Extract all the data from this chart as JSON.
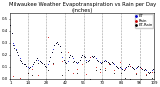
{
  "title": "Milwaukee Weather Evapotranspiration vs Rain per Day (Inches)",
  "title_fontsize": 3.8,
  "background_color": "#ffffff",
  "ylim": [
    0.0,
    0.55
  ],
  "xlim": [
    1,
    109
  ],
  "tick_fontsize": 2.8,
  "series": [
    {
      "label": "ET",
      "color": "#0000cc",
      "marker": ".",
      "markersize": 1.2,
      "x": [
        1,
        2,
        3,
        4,
        5,
        6,
        7,
        8,
        9,
        10,
        11,
        12,
        13,
        14,
        15,
        16,
        17,
        18,
        19,
        20,
        21,
        22,
        23,
        24,
        25,
        26,
        27,
        28,
        29,
        30,
        31,
        32,
        33,
        34,
        35,
        36,
        37,
        38,
        39,
        40,
        41,
        42,
        43,
        44,
        45,
        46,
        47,
        48,
        49,
        50,
        51,
        52,
        53,
        54,
        55,
        56,
        57,
        58,
        59,
        60,
        61,
        62,
        63,
        64,
        65,
        66,
        67,
        68,
        69,
        70,
        71,
        72,
        73,
        74,
        75,
        76,
        77,
        78,
        79,
        80,
        81,
        82,
        83,
        84,
        85,
        86,
        87,
        88,
        89,
        90,
        91,
        92,
        93,
        94,
        95,
        96,
        97,
        98,
        99,
        100,
        101,
        102,
        103,
        104,
        105,
        106,
        107,
        108,
        109
      ],
      "y": [
        0.45,
        0.38,
        0.3,
        0.28,
        0.25,
        0.22,
        0.2,
        0.17,
        0.15,
        0.13,
        0.12,
        0.12,
        0.11,
        0.1,
        0.09,
        0.1,
        0.11,
        0.12,
        0.14,
        0.16,
        0.17,
        0.16,
        0.15,
        0.14,
        0.13,
        0.12,
        0.11,
        0.1,
        0.12,
        0.15,
        0.18,
        0.22,
        0.25,
        0.28,
        0.3,
        0.31,
        0.29,
        0.27,
        0.22,
        0.18,
        0.16,
        0.14,
        0.13,
        0.15,
        0.18,
        0.2,
        0.19,
        0.17,
        0.15,
        0.14,
        0.13,
        0.14,
        0.16,
        0.18,
        0.2,
        0.19,
        0.18,
        0.16,
        0.15,
        0.16,
        0.18,
        0.19,
        0.18,
        0.19,
        0.17,
        0.16,
        0.15,
        0.14,
        0.13,
        0.14,
        0.15,
        0.16,
        0.15,
        0.14,
        0.13,
        0.12,
        0.14,
        0.13,
        0.12,
        0.11,
        0.1,
        0.09,
        0.1,
        0.09,
        0.08,
        0.07,
        0.09,
        0.1,
        0.11,
        0.12,
        0.11,
        0.1,
        0.09,
        0.08,
        0.09,
        0.1,
        0.11,
        0.1,
        0.09,
        0.08,
        0.07,
        0.08,
        0.07,
        0.06,
        0.05,
        0.06,
        0.07,
        0.08,
        0.06
      ]
    },
    {
      "label": "Rain",
      "color": "#cc0000",
      "marker": ".",
      "markersize": 1.2,
      "x": [
        3,
        8,
        14,
        17,
        22,
        29,
        33,
        40,
        44,
        48,
        51,
        55,
        58,
        61,
        65,
        68,
        72,
        75,
        79,
        83,
        87,
        91,
        95,
        99,
        103,
        107
      ],
      "y": [
        0.02,
        0.01,
        0.05,
        0.08,
        0.03,
        0.35,
        0.12,
        0.15,
        0.22,
        0.05,
        0.08,
        0.12,
        0.04,
        0.18,
        0.1,
        0.06,
        0.09,
        0.12,
        0.07,
        0.14,
        0.08,
        0.11,
        0.05,
        0.09,
        0.04,
        0.06
      ]
    },
    {
      "label": "ET-Rain",
      "color": "#000000",
      "marker": ".",
      "markersize": 1.2,
      "x": [
        1,
        2,
        3,
        4,
        5,
        6,
        7,
        8,
        9,
        10,
        11,
        12,
        13,
        14,
        15,
        16,
        17,
        18,
        19,
        20,
        21,
        22,
        23,
        24,
        25,
        26,
        27,
        28,
        29,
        30,
        31,
        32,
        33,
        34,
        35,
        36,
        37,
        38,
        39,
        40,
        41,
        42,
        43,
        44,
        45,
        46,
        47,
        48,
        49,
        50,
        51,
        52,
        53,
        54,
        55,
        56,
        57,
        58,
        59,
        60,
        61,
        62,
        63,
        64,
        65,
        66,
        67,
        68,
        69,
        70,
        71,
        72,
        73,
        74,
        75,
        76,
        77,
        78,
        79,
        80,
        81,
        82,
        83,
        84,
        85,
        86,
        87,
        88,
        89,
        90,
        91,
        92,
        93,
        94,
        95,
        96,
        97,
        98,
        99,
        100,
        101,
        102,
        103,
        104,
        105,
        106,
        107,
        108,
        109
      ],
      "y": [
        0.45,
        0.38,
        0.28,
        0.26,
        0.24,
        0.22,
        0.2,
        0.16,
        0.15,
        0.13,
        0.12,
        0.12,
        0.11,
        0.05,
        0.09,
        0.1,
        0.03,
        0.12,
        0.14,
        0.16,
        0.17,
        0.13,
        0.15,
        0.14,
        0.13,
        0.12,
        0.11,
        0.1,
        0.07,
        0.15,
        0.18,
        0.22,
        0.13,
        0.28,
        0.3,
        0.31,
        0.29,
        0.27,
        0.22,
        0.03,
        0.16,
        0.14,
        0.13,
        0.07,
        0.18,
        0.2,
        0.19,
        0.14,
        0.15,
        0.14,
        0.05,
        0.14,
        0.16,
        0.18,
        0.2,
        0.19,
        0.18,
        0.14,
        0.15,
        0.16,
        0.0,
        0.19,
        0.18,
        0.19,
        0.07,
        0.16,
        0.15,
        0.08,
        0.13,
        0.14,
        0.15,
        0.07,
        0.15,
        0.14,
        0.13,
        0.12,
        0.14,
        0.13,
        0.05,
        0.11,
        0.1,
        0.09,
        0.1,
        0.05,
        0.08,
        0.07,
        0.01,
        0.1,
        0.11,
        0.12,
        0.0,
        0.1,
        0.09,
        0.08,
        0.04,
        0.1,
        0.11,
        0.1,
        0.0,
        0.08,
        0.07,
        0.08,
        0.03,
        0.06,
        0.05,
        0.06,
        0.01,
        0.08,
        0.06
      ]
    }
  ],
  "vlines": [
    14,
    28,
    42,
    56,
    70,
    84,
    98
  ],
  "vline_style": "--",
  "vline_color": "#999999",
  "vline_linewidth": 0.4,
  "legend": {
    "entries": [
      "ET",
      "Rain",
      "ET-Rain"
    ],
    "colors": [
      "#0000cc",
      "#cc0000",
      "#000000"
    ],
    "fontsize": 2.8,
    "loc": "upper right"
  },
  "yticks": [
    0.0,
    0.1,
    0.2,
    0.3,
    0.4,
    0.5
  ],
  "xticks": [
    1,
    14,
    28,
    42,
    56,
    70,
    84,
    98,
    109
  ]
}
